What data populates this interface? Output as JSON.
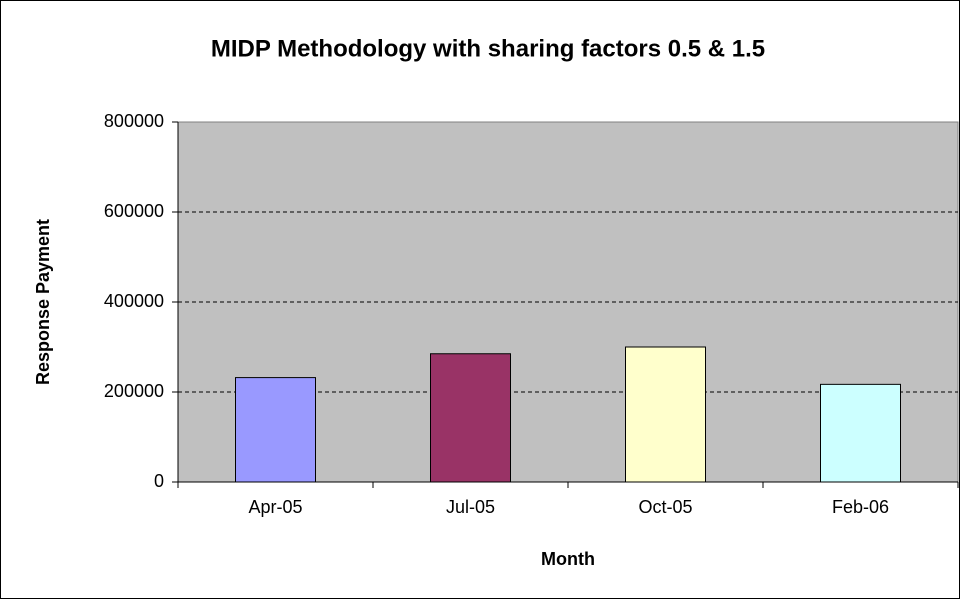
{
  "chart_data": {
    "type": "bar",
    "title": "MIDP Methodology with sharing factors 0.5 & 1.5",
    "x_label": "Month",
    "y_label": "Response Payment",
    "categories": [
      "Apr-05",
      "Jul-05",
      "Oct-05",
      "Feb-06"
    ],
    "values": [
      232000,
      285000,
      300000,
      217000
    ],
    "colors": [
      "#9999ff",
      "#993366",
      "#ffffcc",
      "#ccffff"
    ],
    "ylim": [
      0,
      800000
    ],
    "yticks": [
      0,
      200000,
      400000,
      600000,
      800000
    ],
    "grid": true
  }
}
